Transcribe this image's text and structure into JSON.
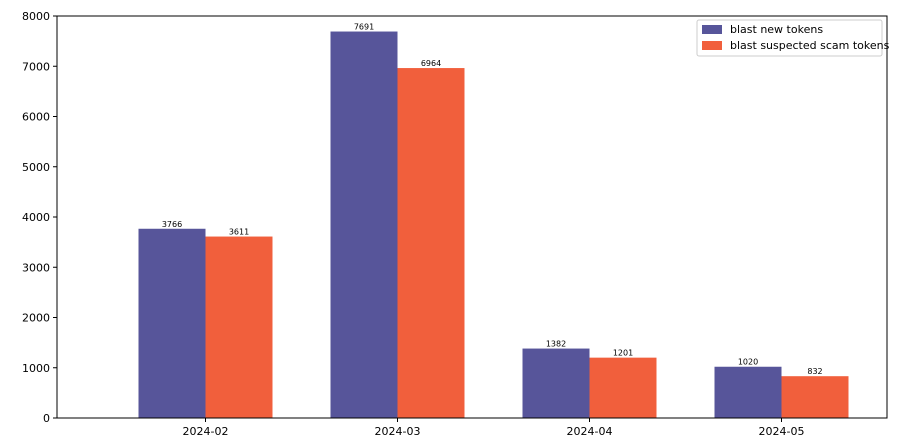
{
  "chart_data": {
    "type": "bar",
    "categories": [
      "2024-02",
      "2024-03",
      "2024-04",
      "2024-05"
    ],
    "series": [
      {
        "name": "blast new tokens",
        "color": "#57559a",
        "values": [
          3766,
          7691,
          1382,
          1020
        ]
      },
      {
        "name": "blast suspected scam tokens",
        "color": "#f15f3c",
        "values": [
          3611,
          6964,
          1201,
          832
        ]
      }
    ],
    "ylim": [
      0,
      8000
    ],
    "yticks": [
      0,
      1000,
      2000,
      3000,
      4000,
      5000,
      6000,
      7000,
      8000
    ],
    "grid": false,
    "legend_position": "top-right",
    "title": "",
    "xlabel": "",
    "ylabel": ""
  }
}
